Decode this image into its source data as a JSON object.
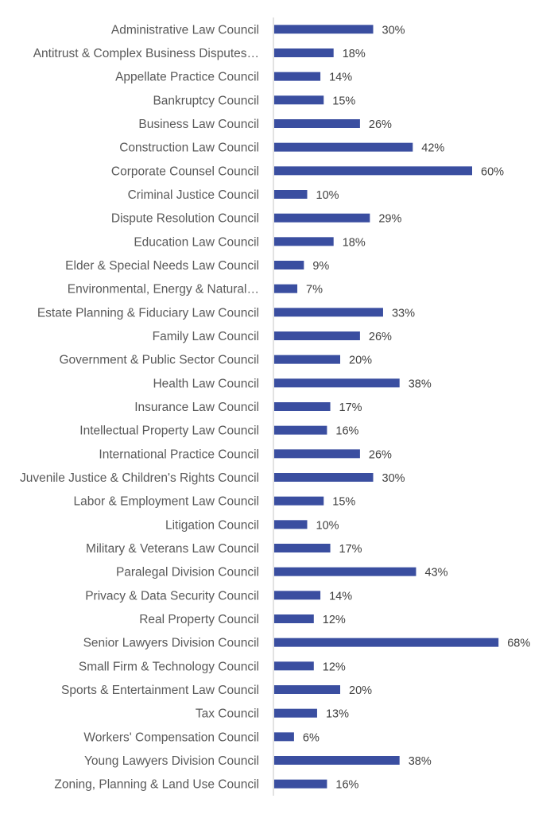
{
  "chart_data": {
    "type": "bar",
    "orientation": "horizontal",
    "title": "",
    "xlabel": "",
    "ylabel": "",
    "xlim": [
      0,
      70
    ],
    "grid": false,
    "legend": "none",
    "bar_color": "#3a4ea0",
    "value_suffix": "%",
    "categories": [
      "Administrative Law Council",
      "Antitrust & Complex Business Disputes…",
      "Appellate Practice Council",
      "Bankruptcy Council",
      "Business Law Council",
      "Construction Law Council",
      "Corporate Counsel Council",
      "Criminal Justice Council",
      "Dispute Resolution Council",
      "Education Law Council",
      "Elder & Special Needs Law Council",
      "Environmental, Energy & Natural…",
      "Estate Planning & Fiduciary Law Council",
      "Family Law Council",
      "Government & Public Sector Council",
      "Health Law Council",
      "Insurance Law Council",
      "Intellectual Property Law Council",
      "International Practice Council",
      "Juvenile Justice & Children's Rights Council",
      "Labor & Employment Law Council",
      "Litigation Council",
      "Military & Veterans Law Council",
      "Paralegal Division Council",
      "Privacy & Data Security Council",
      "Real Property Council",
      "Senior Lawyers Division Council",
      "Small Firm & Technology Council",
      "Sports & Entertainment Law Council",
      "Tax Council",
      "Workers' Compensation Council",
      "Young Lawyers Division Council",
      "Zoning, Planning & Land Use Council"
    ],
    "values": [
      30,
      18,
      14,
      15,
      26,
      42,
      60,
      10,
      29,
      18,
      9,
      7,
      33,
      26,
      20,
      38,
      17,
      16,
      26,
      30,
      15,
      10,
      17,
      43,
      14,
      12,
      68,
      12,
      20,
      13,
      6,
      38,
      16
    ],
    "data_labels": [
      "30%",
      "18%",
      "14%",
      "15%",
      "26%",
      "42%",
      "60%",
      "10%",
      "29%",
      "18%",
      "9%",
      "7%",
      "33%",
      "26%",
      "20%",
      "38%",
      "17%",
      "16%",
      "26%",
      "30%",
      "15%",
      "10%",
      "17%",
      "43%",
      "14%",
      "12%",
      "68%",
      "12%",
      "20%",
      "13%",
      "6%",
      "38%",
      "16%"
    ]
  }
}
